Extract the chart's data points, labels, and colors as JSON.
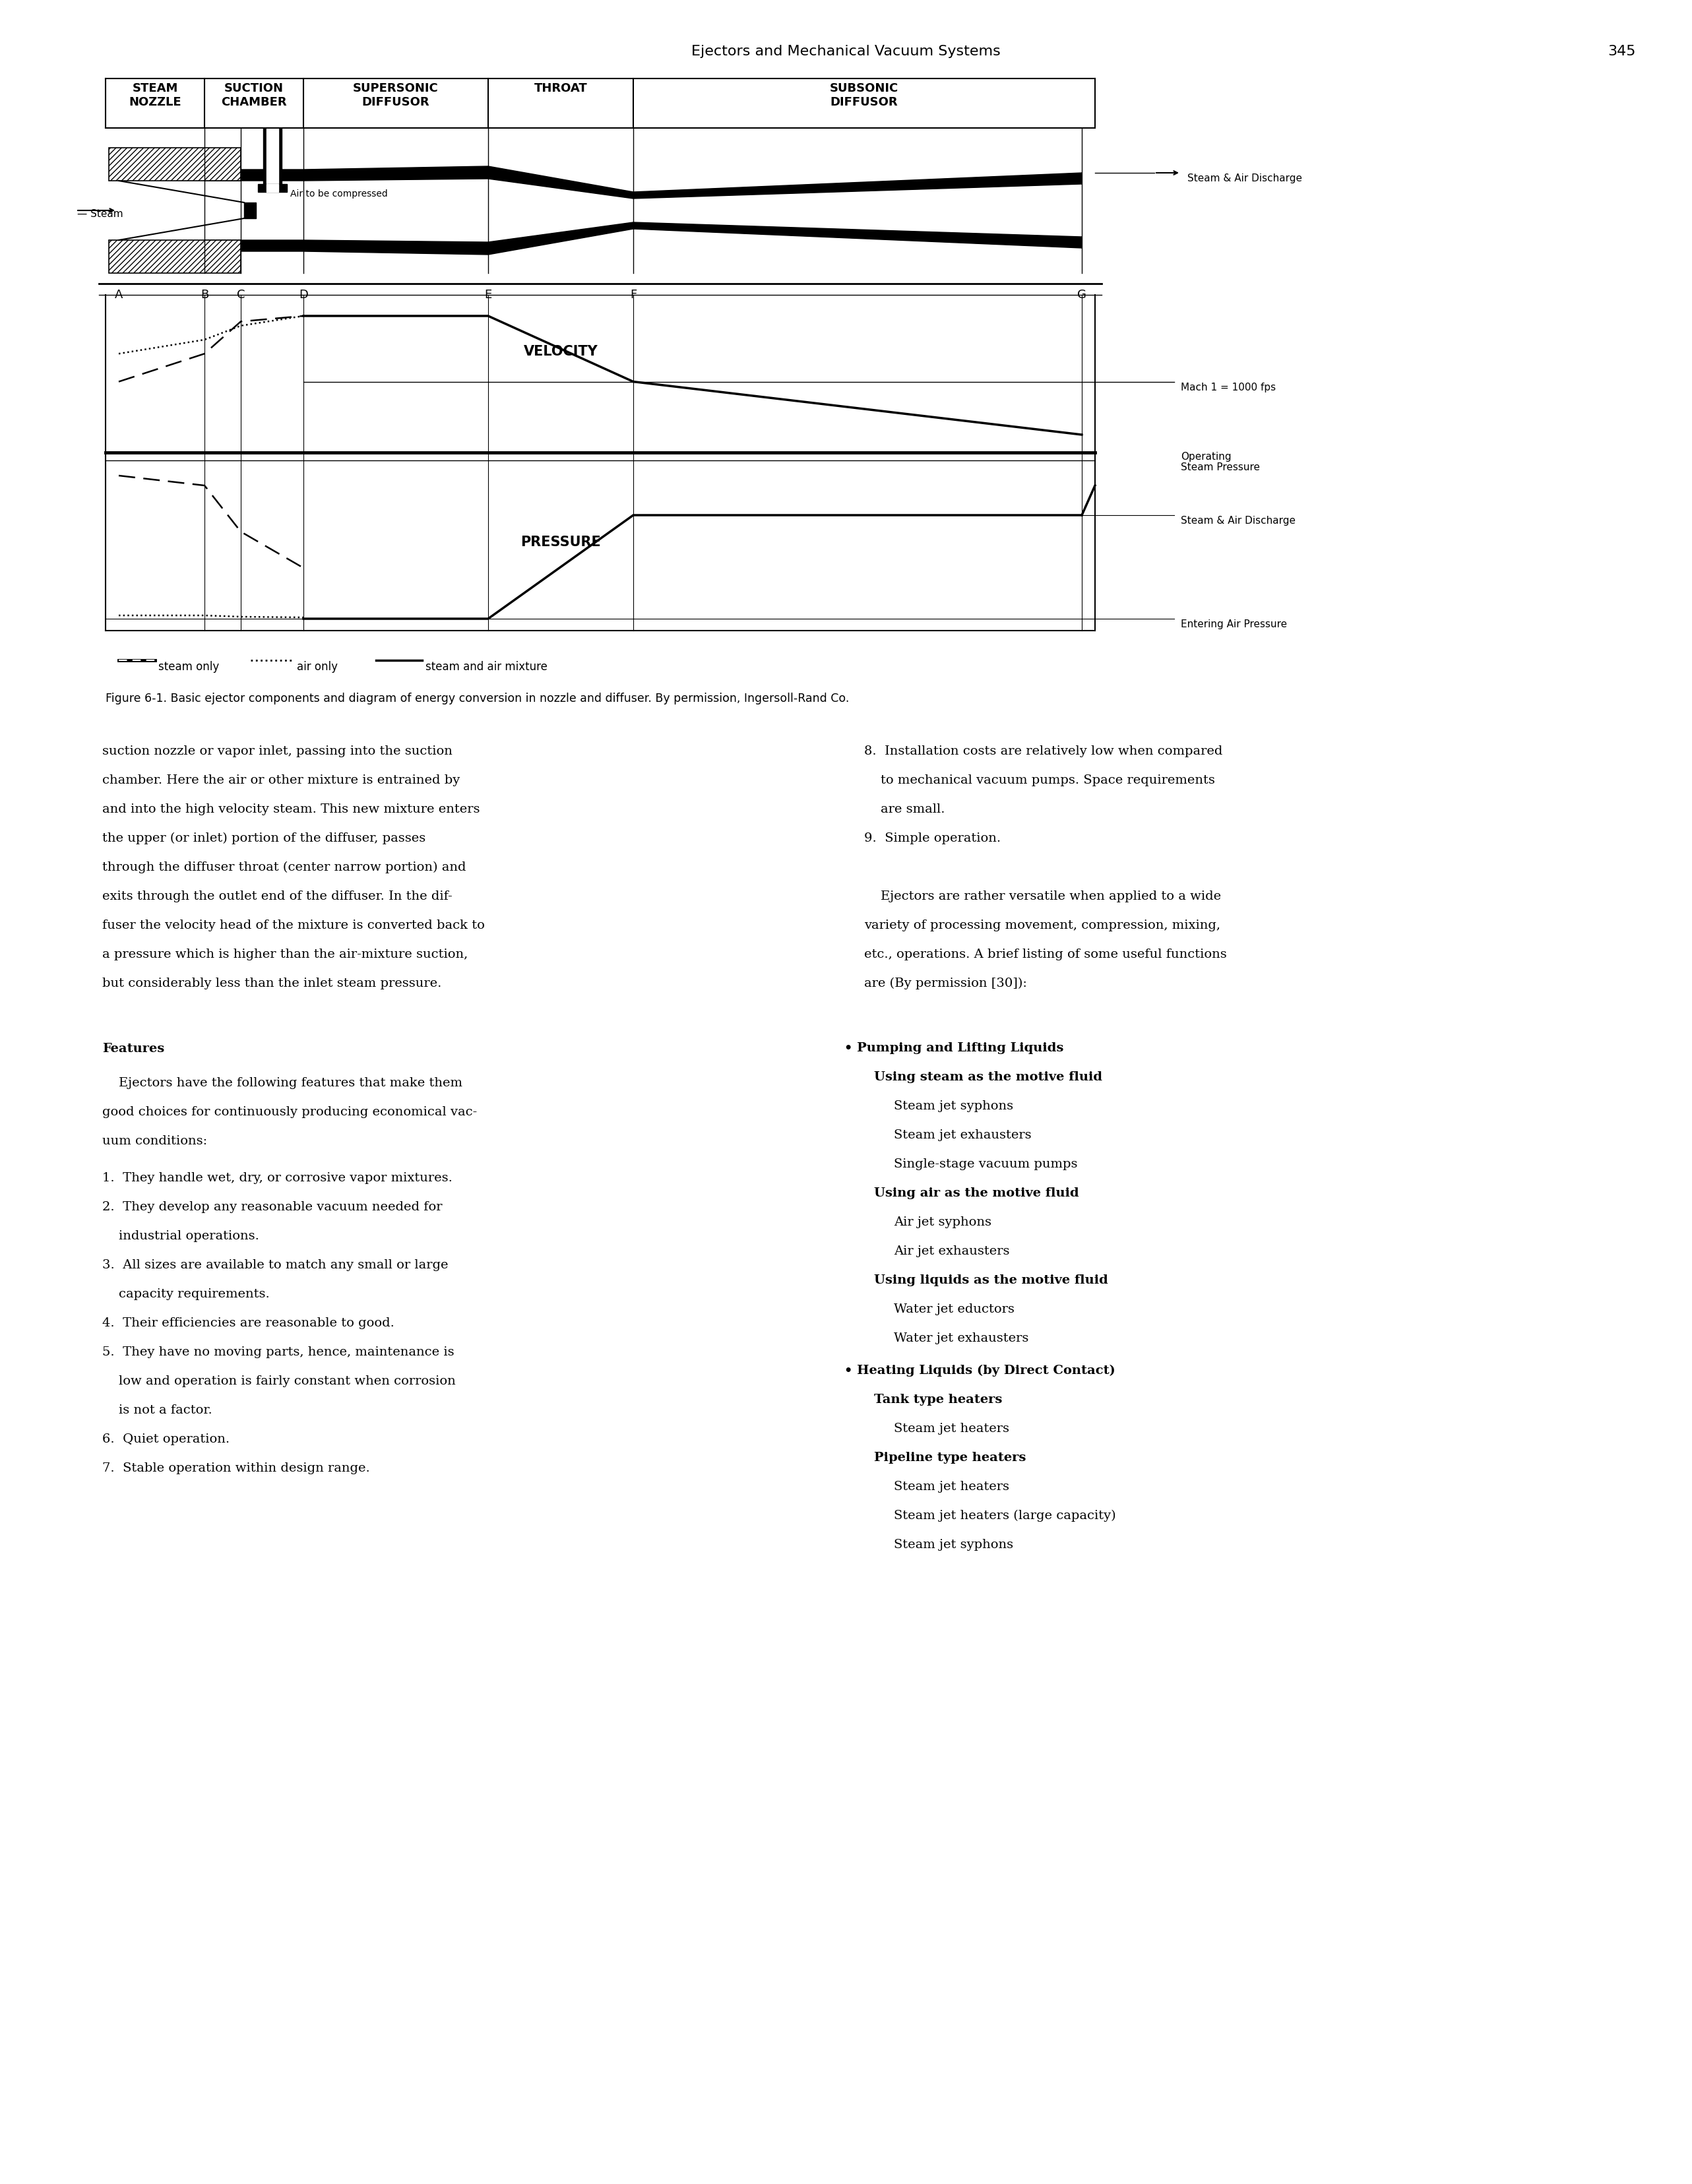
{
  "page_header": "Ejectors and Mechanical Vacuum Systems",
  "page_number": "345",
  "figure_caption": "Figure 6-1. Basic ejector components and diagram of energy conversion in nozzle and diffuser. By permission, Ingersoll-Rand Co.",
  "section_labels": [
    "STEAM\nNOZZLE",
    "SUCTION\nCHAMBER",
    "SUPERSONIC\nDIFFUSOR",
    "THROAT",
    "SUBSONIC\nDIFFUSOR"
  ],
  "position_labels": [
    "A",
    "B",
    "C",
    "D",
    "E",
    "F",
    "G"
  ],
  "legend_items": [
    "steam only",
    "air only",
    "steam and air mixture"
  ],
  "body_text_left": [
    "suction nozzle or vapor inlet, passing into the suction",
    "chamber. Here the air or other mixture is entrained by",
    "and into the high velocity steam. This new mixture enters",
    "the upper (or inlet) portion of the diffuser, passes",
    "through the diffuser throat (center narrow portion) and",
    "exits through the outlet end of the diffuser. In the dif-",
    "fuser the velocity head of the mixture is converted back to",
    "a pressure which is higher than the air-mixture suction,",
    "but considerably less than the inlet steam pressure."
  ],
  "features_header": "Features",
  "features_intro_1": "    Ejectors have the following features that make them",
  "features_intro_2": "good choices for continuously producing economical vac-",
  "features_intro_3": "uum conditions:",
  "numbered_items": [
    "1.  They handle wet, dry, or corrosive vapor mixtures.",
    "2.  They develop any reasonable vacuum needed for",
    "    industrial operations.",
    "3.  All sizes are available to match any small or large",
    "    capacity requirements.",
    "4.  Their efficiencies are reasonable to good.",
    "5.  They have no moving parts, hence, maintenance is",
    "    low and operation is fairly constant when corrosion",
    "    is not a factor.",
    "6.  Quiet operation.",
    "7.  Stable operation within design range."
  ],
  "body_text_right_8a": "8.  Installation costs are relatively low when compared",
  "body_text_right_8b": "    to mechanical vacuum pumps. Space requirements",
  "body_text_right_8c": "    are small.",
  "body_text_right_9": "9.  Simple operation.",
  "body_text_right_para": [
    "    Ejectors are rather versatile when applied to a wide",
    "variety of processing movement, compression, mixing,",
    "etc., operations. A brief listing of some useful functions",
    "are (By permission [30]):"
  ],
  "bullet1_header": "Pumping and Lifting Liquids",
  "bullet1_sub1_header": "Using steam as the motive fluid",
  "bullet1_sub1_items": [
    "Steam jet syphons",
    "Steam jet exhausters",
    "Single-stage vacuum pumps"
  ],
  "bullet1_sub2_header": "Using air as the motive fluid",
  "bullet1_sub2_items": [
    "Air jet syphons",
    "Air jet exhausters"
  ],
  "bullet1_sub3_header": "Using liquids as the motive fluid",
  "bullet1_sub3_items": [
    "Water jet eductors",
    "Water jet exhausters"
  ],
  "bullet2_header": "Heating Liquids (by Direct Contact)",
  "bullet2_sub1_header": "Tank type heaters",
  "bullet2_sub1_items": [
    "Steam jet heaters"
  ],
  "bullet2_sub2_header": "Pipeline type heaters",
  "bullet2_sub2_items": [
    "Steam jet heaters",
    "Steam jet heaters (large capacity)",
    "Steam jet syphons"
  ],
  "background_color": "#ffffff",
  "text_color": "#000000"
}
